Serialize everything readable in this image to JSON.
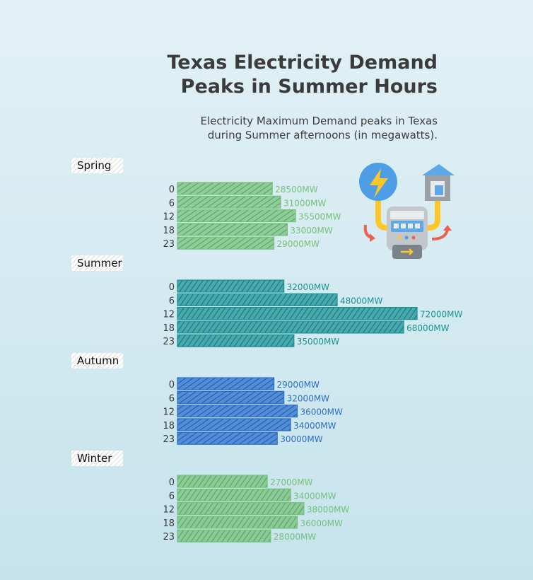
{
  "header": {
    "title_line1": "Texas Electricity Demand",
    "title_line2": "Peaks in Summer Hours",
    "subtitle_line1": "Electricity Maximum Demand peaks in Texas",
    "subtitle_line2": "during Summer afternoons (in megawatts)."
  },
  "chart_data": {
    "type": "bar",
    "orientation": "horizontal",
    "unit": "MW",
    "categories": [
      "0",
      "6",
      "12",
      "18",
      "23"
    ],
    "series": [
      {
        "name": "Spring",
        "values": [
          28500,
          31000,
          35500,
          33000,
          29000
        ],
        "color": "#74c27a"
      },
      {
        "name": "Summer",
        "values": [
          32000,
          48000,
          72000,
          68000,
          35000
        ],
        "color": "#1a9295"
      },
      {
        "name": "Autumn",
        "values": [
          29000,
          32000,
          36000,
          34000,
          30000
        ],
        "color": "#2a6fce"
      },
      {
        "name": "Winter",
        "values": [
          27000,
          34000,
          38000,
          36000,
          28000
        ],
        "color": "#74c27a"
      }
    ],
    "xlim": [
      0,
      72000
    ],
    "grid": false
  },
  "icons": {
    "illustration": "electric-meter-icon"
  }
}
